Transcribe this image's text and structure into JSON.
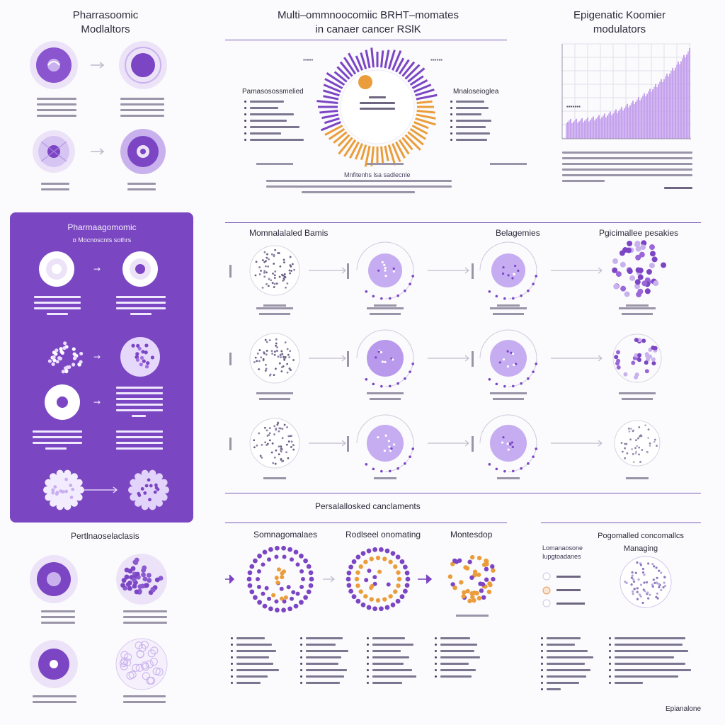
{
  "titles": {
    "top_left": [
      "Pharrasoomic",
      "Modlaltors"
    ],
    "top_center": [
      "Multi–ommnoocomiic BRHT–momates",
      "in canaer cancer RSlK"
    ],
    "top_right": [
      "Epigenatic Koomier",
      "modulators"
    ],
    "panel": [
      "Pharmaagomomic",
      "ɒ Mocnoscnts sothrs"
    ],
    "mid_headers": [
      "Momnalalaled Bamis",
      "Belagemies",
      "Pgicimallee pesakies"
    ],
    "bottom_section": "Persalallosked canclaments",
    "bottom_left": "Pertlnaoselaclasis",
    "bottom_cols": [
      "Somnagomalaes",
      "Rodlseel onomating",
      "Montesdop"
    ],
    "bottom_right": [
      "Pogomalled concomallcs",
      "Managing"
    ],
    "donut_left_label": "Pamasosossmelied",
    "donut_right_label": "Mnaloseioglea",
    "donut_bottom": "Mnfitenhs lsa sadlecnle",
    "bottom_right_legend": [
      "Lomanaosone",
      "Iupgtoadanes"
    ],
    "footer": "Epianalone"
  },
  "colors": {
    "purple": "#7b45c4",
    "light_purple": "#c9b1ee",
    "lavender": "#ece3f8",
    "orange": "#ea9d3a",
    "grid": "#e3dfec"
  },
  "icons": [
    "cell-icon",
    "nucleus-icon",
    "arrow-icon",
    "dot-cluster-icon",
    "ring-chart-icon",
    "area-chart-icon",
    "legend-circle-icon"
  ]
}
